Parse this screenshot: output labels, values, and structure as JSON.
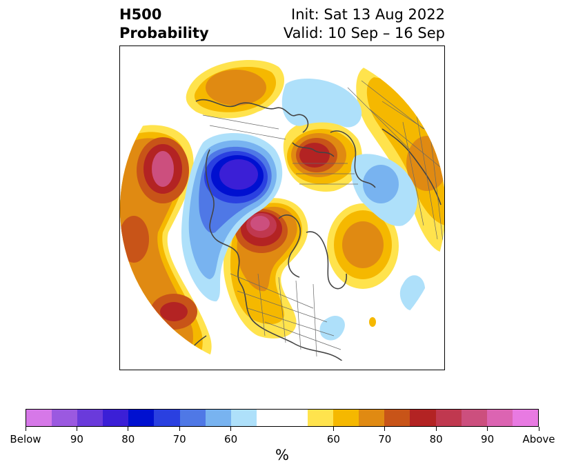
{
  "header": {
    "title_line1": "H500",
    "title_line2": "Probability",
    "init_text": "Init: Sat 13 Aug 2022",
    "valid_text": "Valid: 10 Sep – 16 Sep"
  },
  "colorbar": {
    "unit_label": "%",
    "colors": [
      "#d678e8",
      "#9b59e0",
      "#6a3adb",
      "#3b1fd6",
      "#0010d0",
      "#2a40e0",
      "#4f78e6",
      "#78b3f0",
      "#aee0fa",
      "#ffffff",
      "#ffffff",
      "#ffe34d",
      "#f5b800",
      "#e08a12",
      "#c85418",
      "#b32323",
      "#c0384f",
      "#cc4f7e",
      "#dc64b2",
      "#e87ae2"
    ],
    "tick_labels": [
      {
        "key": "below",
        "text": "Below",
        "slot": 0
      },
      {
        "key": "b90",
        "text": "90",
        "slot": 2
      },
      {
        "key": "b80",
        "text": "80",
        "slot": 4
      },
      {
        "key": "b70",
        "text": "70",
        "slot": 6
      },
      {
        "key": "b60",
        "text": "60",
        "slot": 8
      },
      {
        "key": "a60",
        "text": "60",
        "slot": 12
      },
      {
        "key": "a70",
        "text": "70",
        "slot": 14
      },
      {
        "key": "a80",
        "text": "80",
        "slot": 16
      },
      {
        "key": "a90",
        "text": "90",
        "slot": 18
      },
      {
        "key": "above",
        "text": "Above",
        "slot": 20
      }
    ]
  },
  "map": {
    "projection": "polar stereographic (Northern Hemisphere)",
    "anomaly_colors": {
      "above_60": "#ffe34d",
      "above_70": "#f5b800",
      "above_75": "#e08a12",
      "above_80": "#c85418",
      "above_85": "#b32323",
      "above_90": "#c0384f",
      "above_95": "#cc4f7e",
      "below_60": "#aee0fa",
      "below_65": "#78b3f0",
      "below_70": "#4f78e6",
      "below_80": "#2a40e0",
      "below_85": "#0010d0",
      "below_90": "#3b1fd6"
    }
  }
}
